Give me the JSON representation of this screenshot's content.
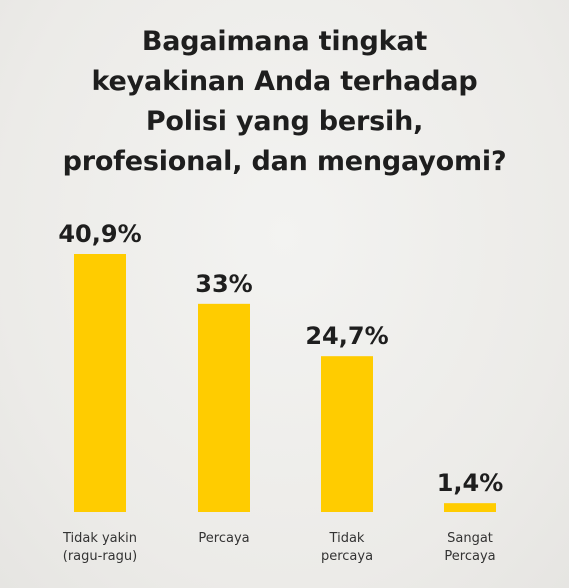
{
  "title_lines": [
    "Bagaimana tingkat",
    "keyakinan Anda terhadap",
    "Polisi yang bersih,",
    "profesional, dan mengayomi?"
  ],
  "colors": {
    "bar": "#ffcc00",
    "text": "#1e1e1e",
    "background": "#efefed"
  },
  "chart_data": {
    "type": "bar",
    "title": "Bagaimana tingkat keyakinan Anda terhadap Polisi yang bersih, profesional, dan mengayomi?",
    "categories": [
      [
        "Tidak yakin",
        "(ragu-ragu)"
      ],
      [
        "Percaya"
      ],
      [
        "Tidak",
        "percaya"
      ],
      [
        "Sangat",
        "Percaya"
      ]
    ],
    "values": [
      40.9,
      33,
      24.7,
      1.4
    ],
    "value_labels": [
      "40,9%",
      "33%",
      "24,7%",
      "1,4%"
    ],
    "ylim": [
      0,
      40.9
    ],
    "grid": false,
    "legend": "none"
  }
}
